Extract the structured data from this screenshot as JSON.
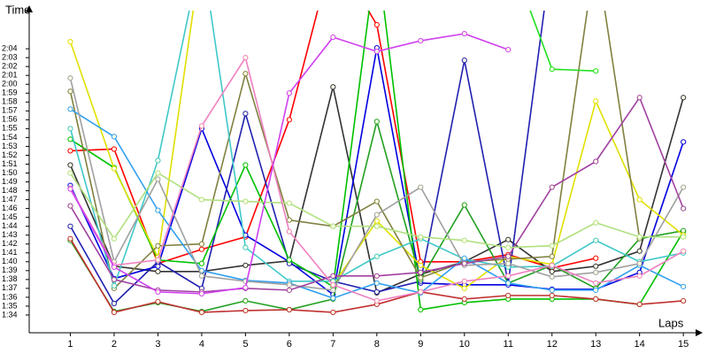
{
  "chart_data": {
    "type": "line",
    "x_label": "Laps",
    "y_label": "Time",
    "x": [
      1,
      2,
      3,
      4,
      5,
      6,
      7,
      8,
      9,
      10,
      11,
      12,
      13,
      14,
      15
    ],
    "xlim": [
      0,
      15.3
    ],
    "xticks": [
      1,
      2,
      3,
      4,
      5,
      6,
      7,
      8,
      9,
      10,
      11,
      12,
      13,
      14,
      15
    ],
    "ylim": [
      92,
      128
    ],
    "yticks": [
      {
        "value": 94,
        "label": "1:34"
      },
      {
        "value": 95,
        "label": "1:35"
      },
      {
        "value": 96,
        "label": "1:36"
      },
      {
        "value": 97,
        "label": "1:37"
      },
      {
        "value": 98,
        "label": "1:38"
      },
      {
        "value": 99,
        "label": "1:39"
      },
      {
        "value": 100,
        "label": "1:40"
      },
      {
        "value": 101,
        "label": "1:41"
      },
      {
        "value": 102,
        "label": "1:42"
      },
      {
        "value": 103,
        "label": "1:43"
      },
      {
        "value": 104,
        "label": "1:44"
      },
      {
        "value": 105,
        "label": "1:45"
      },
      {
        "value": 106,
        "label": "1:46"
      },
      {
        "value": 107,
        "label": "1:47"
      },
      {
        "value": 108,
        "label": "1:48"
      },
      {
        "value": 109,
        "label": "1:49"
      },
      {
        "value": 110,
        "label": "1:50"
      },
      {
        "value": 111,
        "label": "1:51"
      },
      {
        "value": 112,
        "label": "1:52"
      },
      {
        "value": 113,
        "label": "1:53"
      },
      {
        "value": 114,
        "label": "1:54"
      },
      {
        "value": 115,
        "label": "1:55"
      },
      {
        "value": 116,
        "label": "1:56"
      },
      {
        "value": 117,
        "label": "1:57"
      },
      {
        "value": 118,
        "label": "1:58"
      },
      {
        "value": 119,
        "label": "1:59"
      },
      {
        "value": 120,
        "label": "2:00"
      },
      {
        "value": 121,
        "label": "2:01"
      },
      {
        "value": 122,
        "label": "2:02"
      },
      {
        "value": 123,
        "label": "2:03"
      },
      {
        "value": 124,
        "label": "2:04"
      }
    ],
    "grid": false,
    "series": [
      {
        "color": "#ff0000",
        "values": [
          112.5,
          112.7,
          99.8,
          101.4,
          102.8,
          116,
          135,
          126.7,
          100,
          100,
          100.8,
          99.3,
          100.4,
          null,
          null
        ]
      },
      {
        "color": "#333333",
        "values": [
          110.9,
          99.5,
          98.9,
          98.9,
          99.6,
          100.1,
          119.7,
          96.5,
          98.6,
          100,
          102.5,
          98.9,
          99.5,
          101.2,
          118.5
        ]
      },
      {
        "color": "#0000e0",
        "values": [
          108.6,
          98.1,
          99.5,
          115,
          103,
          100,
          96.3,
          124.1,
          97.6,
          97.4,
          97.4,
          96.9,
          96.9,
          98.8,
          113.5
        ]
      },
      {
        "color": "#2020b0",
        "values": [
          104,
          95.3,
          100,
          97,
          116.7,
          99.8,
          97.8,
          96.6,
          97.8,
          122.7,
          97.6,
          135,
          null,
          null,
          null
        ]
      },
      {
        "color": "#00c000",
        "values": [
          113.8,
          110.6,
          100.2,
          99.8,
          110.9,
          100.2,
          97.2,
          135,
          94.6,
          95.4,
          95.8,
          95.8,
          95.8,
          95.2,
          103.4
        ]
      },
      {
        "color": "#20a020",
        "values": [
          102.4,
          94.4,
          95.4,
          94.4,
          95.6,
          94.6,
          95.8,
          115.8,
          98,
          106.4,
          97.6,
          99.6,
          97,
          102.6,
          103.5
        ]
      },
      {
        "color": "#c03030",
        "values": [
          102.6,
          94.3,
          95.5,
          94.3,
          94.5,
          94.6,
          94.3,
          95.2,
          96.6,
          95.8,
          96.2,
          96.2,
          95.8,
          95.2,
          95.6
        ]
      },
      {
        "color": "#e0e000",
        "values": [
          124.8,
          110.5,
          100.5,
          135,
          null,
          null,
          97.4,
          104.6,
          99.6,
          97,
          100.6,
          99.7,
          118.1,
          107,
          103
        ]
      },
      {
        "color": "#808040",
        "values": [
          119.2,
          97,
          101.8,
          102,
          121.2,
          104.7,
          104,
          106.8,
          98.2,
          100,
          100.3,
          100.6,
          135,
          102.6,
          null
        ]
      },
      {
        "color": "#40c8c8",
        "values": [
          115,
          97.3,
          111.4,
          135,
          101.6,
          97.8,
          97.8,
          100.6,
          102.6,
          100.3,
          99.4,
          99.5,
          102.4,
          100,
          101
        ]
      },
      {
        "color": "#30a0f0",
        "values": [
          117.2,
          114.1,
          105.8,
          99,
          97.9,
          97.6,
          95.9,
          97.6,
          96.5,
          100.4,
          97.6,
          96.8,
          96.8,
          99.6,
          97.2
        ]
      },
      {
        "color": "#a0a0a0",
        "values": [
          120.7,
          100,
          109.3,
          98.4,
          97.8,
          97.4,
          96.8,
          105.3,
          108.4,
          99.6,
          99.8,
          98.3,
          98.8,
          99.8,
          108.4
        ]
      },
      {
        "color": "#a040a0",
        "values": [
          106.3,
          98,
          96.8,
          96.6,
          97,
          96.8,
          98.4,
          98.4,
          98.8,
          99.8,
          100.6,
          108.4,
          111.3,
          118.5,
          106
        ]
      },
      {
        "color": "#b0e080",
        "values": [
          110,
          102.6,
          110,
          107,
          106.8,
          106.6,
          104,
          104,
          102.8,
          102.4,
          101.6,
          101.8,
          104.4,
          102.8,
          102.8
        ]
      },
      {
        "color": "#f080c0",
        "values": [
          108.3,
          99.6,
          100.2,
          115.3,
          123,
          103.4,
          97.4,
          95.6,
          96.6,
          97.8,
          98.4,
          99.6,
          97.6,
          98.4,
          101.2
        ]
      },
      {
        "color": "#d040f0",
        "values": [
          108.2,
          99.4,
          96.6,
          96.4,
          97.1,
          119,
          125.3,
          123.7,
          124.9,
          125.7,
          123.9,
          null,
          null,
          null,
          null
        ]
      },
      {
        "color": "#20e020",
        "values": [
          null,
          null,
          null,
          null,
          null,
          null,
          null,
          null,
          null,
          null,
          135,
          121.7,
          121.5,
          null,
          null
        ]
      }
    ]
  }
}
